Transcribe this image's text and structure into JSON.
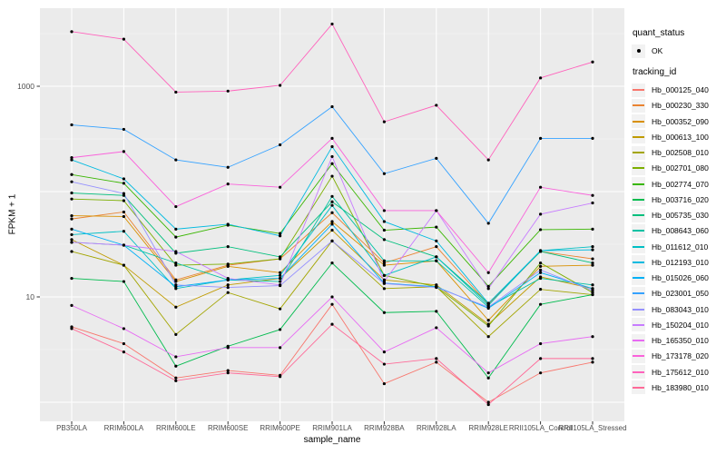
{
  "figure": {
    "background": "#FFFFFF",
    "panel_bg": "#EBEBEB",
    "grid_color": "#FFFFFF",
    "tick_color": "#333333",
    "tick_label_color": "#4D4D4D",
    "point_color": "#000000",
    "legend_key_bg": "#F2F2F2"
  },
  "axes": {
    "x": {
      "title": "sample_name",
      "categories": [
        "PB350LA",
        "RRIM600LA",
        "RRIM600LE",
        "RRIM600SE",
        "RRIM600PE",
        "RRIM901LA",
        "RRIM928BA",
        "RRIM928LA",
        "RRIM928LE",
        "RRII105LA_Control",
        "RRII105LA_Stressed"
      ]
    },
    "y": {
      "title": "FPKM + 1",
      "scale": "log10",
      "ticks": [
        {
          "label": "1000",
          "value": 1000
        },
        {
          "label": "10",
          "value": 10
        }
      ]
    }
  },
  "legend": {
    "quant_status": {
      "title": "quant_status",
      "items": [
        {
          "label": "OK",
          "symbol": "black-point"
        }
      ]
    },
    "tracking_id_title": "tracking_id"
  },
  "chart_data": {
    "type": "line",
    "title": "",
    "xlabel": "sample_name",
    "ylabel": "FPKM + 1",
    "y_scale": "log10",
    "ylim": [
      0.6,
      5500
    ],
    "y_gridlines_major": [
      1,
      10,
      100,
      1000
    ],
    "y_gridlines_minor": [
      3.162,
      31.62,
      316.2,
      3162
    ],
    "legend_position": "right",
    "marker": "black point at every vertex (quant_status = OK)",
    "x_categories": [
      "PB350LA",
      "RRIM600LA",
      "RRIM600LE",
      "RRIM600SE",
      "RRIM600PE",
      "RRIM901LA",
      "RRIM928BA",
      "RRIM928LA",
      "RRIM928LE",
      "RRII105LA_Control",
      "RRII105LA_Stressed"
    ],
    "series": [
      {
        "name": "Hb_000125_040",
        "color": "#F8766D",
        "values": [
          5.2,
          3.6,
          1.7,
          2.0,
          1.8,
          8.5,
          1.5,
          2.4,
          1.0,
          1.9,
          2.4
        ]
      },
      {
        "name": "Hb_000230_330",
        "color": "#EA8331",
        "values": [
          55,
          64,
          14.5,
          20,
          23,
          63,
          21,
          30,
          8.5,
          27,
          23
        ]
      },
      {
        "name": "Hb_000352_090",
        "color": "#D89000",
        "values": [
          59,
          58,
          14,
          19.5,
          17,
          52,
          20,
          22,
          6.0,
          19.5,
          20
        ]
      },
      {
        "name": "Hb_000613_100",
        "color": "#C09B00",
        "values": [
          35,
          20,
          8.0,
          13,
          15,
          43,
          14.5,
          13,
          5.5,
          15.5,
          12
        ]
      },
      {
        "name": "Hb_002508_010",
        "color": "#A3A500",
        "values": [
          27,
          20,
          4.4,
          11,
          7.7,
          34,
          12,
          12.5,
          4.2,
          11.8,
          10.5
        ]
      },
      {
        "name": "Hb_002701_080",
        "color": "#7CAE00",
        "values": [
          85,
          82,
          20,
          20.5,
          23,
          140,
          16,
          12.5,
          5.3,
          21,
          11
        ]
      },
      {
        "name": "Hb_002774_070",
        "color": "#39B600",
        "values": [
          145,
          120,
          37,
          48,
          40,
          184,
          43,
          46,
          12.6,
          43.5,
          44
        ]
      },
      {
        "name": "Hb_003716_020",
        "color": "#00BB4E",
        "values": [
          15,
          14,
          2.2,
          3.4,
          4.9,
          21,
          7.1,
          7.3,
          1.7,
          8.5,
          10.5
        ]
      },
      {
        "name": "Hb_005735_030",
        "color": "#00BF7D",
        "values": [
          97,
          92,
          26,
          30,
          24,
          80,
          35,
          24,
          8.7,
          27,
          21
        ]
      },
      {
        "name": "Hb_008643_060",
        "color": "#00C1A3",
        "values": [
          33,
          31,
          21,
          14.5,
          14,
          90,
          22,
          22,
          8.0,
          15,
          13
        ]
      },
      {
        "name": "Hb_011612_010",
        "color": "#00BFC4",
        "values": [
          39,
          42,
          12,
          14.5,
          16,
          74,
          16,
          24,
          8.3,
          27.5,
          30
        ]
      },
      {
        "name": "Hb_012193_010",
        "color": "#00BAE0",
        "values": [
          200,
          132,
          44,
          49,
          38,
          267,
          52,
          34,
          8.7,
          27.5,
          28
        ]
      },
      {
        "name": "Hb_015026_060",
        "color": "#00B0F6",
        "values": [
          44,
          31,
          12.5,
          14.5,
          15,
          49,
          13.5,
          12.5,
          7.8,
          17,
          12
        ]
      },
      {
        "name": "Hb_023001_050",
        "color": "#35A2FF",
        "values": [
          430,
          390,
          200,
          170,
          278,
          640,
          148,
          207,
          50,
          320,
          320
        ]
      },
      {
        "name": "Hb_083043_010",
        "color": "#9590FF",
        "values": [
          124,
          96,
          13,
          12.3,
          12.8,
          34,
          13.4,
          12.3,
          8.0,
          18,
          11.5
        ]
      },
      {
        "name": "Hb_150204_010",
        "color": "#C77CFF",
        "values": [
          33,
          31,
          27,
          15,
          13,
          215,
          14,
          66,
          12,
          61,
          78
        ]
      },
      {
        "name": "Hb_165350_010",
        "color": "#E76BF3",
        "values": [
          8.3,
          5.0,
          2.7,
          3.3,
          3.3,
          10,
          3.0,
          5.1,
          1.9,
          3.6,
          4.2
        ]
      },
      {
        "name": "Hb_173178_020",
        "color": "#FA62DB",
        "values": [
          210,
          240,
          72,
          118,
          110,
          320,
          66,
          66,
          17,
          110,
          92
        ]
      },
      {
        "name": "Hb_175612_010",
        "color": "#FF62BC",
        "values": [
          3300,
          2800,
          880,
          900,
          1020,
          3900,
          460,
          660,
          200,
          1200,
          1700
        ]
      },
      {
        "name": "Hb_183980_010",
        "color": "#FF6A98",
        "values": [
          5.0,
          3.0,
          1.6,
          1.9,
          1.75,
          5.5,
          2.3,
          2.6,
          0.95,
          2.6,
          2.6
        ]
      }
    ]
  }
}
